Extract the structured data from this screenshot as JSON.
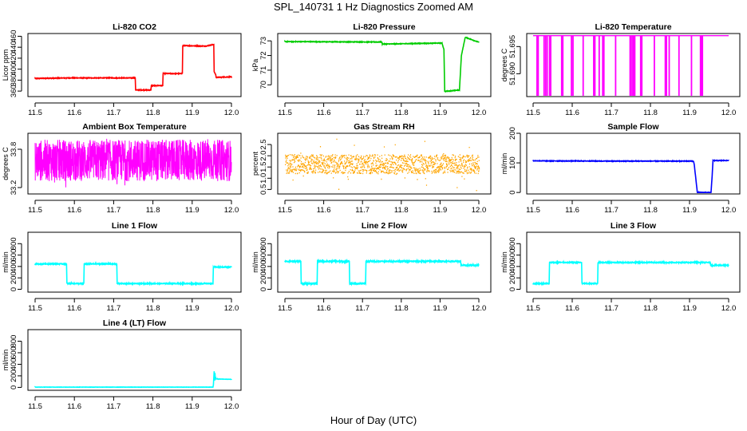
{
  "figure": {
    "title": "SPL_140731  1 Hz Diagnostics Zoomed AM",
    "xlabel": "Hour of Day (UTC)"
  },
  "chart_data": [
    {
      "type": "line",
      "title": "Li-820 CO2",
      "ylabel": "Licor ppm",
      "color": "#ff0000",
      "xlim": [
        11.5,
        12.0
      ],
      "ylim": [
        350,
        465
      ],
      "xticks": [
        "11.5",
        "11.6",
        "11.7",
        "11.8",
        "11.9",
        "12.0"
      ],
      "yticks": [
        360,
        380,
        400,
        420,
        440,
        460
      ],
      "x": [
        11.5,
        11.58,
        11.67,
        11.755,
        11.756,
        11.795,
        11.796,
        11.825,
        11.826,
        11.875,
        11.876,
        11.935,
        11.955,
        11.956,
        11.96,
        11.961,
        12.0
      ],
      "y": [
        383,
        384,
        384,
        384,
        362,
        362,
        370,
        370,
        392,
        392,
        443,
        442,
        445,
        395,
        390,
        385,
        386
      ],
      "noise": 0.6
    },
    {
      "type": "line",
      "title": "Li-820 Pressure",
      "ylabel": "kPa",
      "color": "#00cc00",
      "xlim": [
        11.5,
        12.0
      ],
      "ylim": [
        69.2,
        73.5
      ],
      "xticks": [
        "11.5",
        "11.6",
        "11.7",
        "11.8",
        "11.9",
        "12.0"
      ],
      "yticks": [
        70,
        71,
        72,
        73
      ],
      "x": [
        11.5,
        11.75,
        11.751,
        11.905,
        11.91,
        11.912,
        11.95,
        11.955,
        11.965,
        12.0
      ],
      "y": [
        72.95,
        72.92,
        72.78,
        72.85,
        72.4,
        69.55,
        69.65,
        72.0,
        73.25,
        72.9
      ],
      "noise": 0.02
    },
    {
      "type": "line",
      "title": "Li-820 Temperature",
      "ylabel": "degrees C",
      "color": "#ff00ff",
      "xlim": [
        11.5,
        12.0
      ],
      "ylim": [
        51.6858,
        51.6974
      ],
      "xticks": [
        "11.5",
        "11.6",
        "11.7",
        "11.8",
        "11.9",
        "12.0"
      ],
      "yticks": [
        51.69,
        51.695
      ],
      "ytick_labels": [
        "51.690",
        "51.695"
      ],
      "baseline": 51.697,
      "low": 51.6858,
      "drops": [
        11.51,
        11.513,
        11.528,
        11.532,
        11.536,
        11.542,
        11.545,
        11.573,
        11.576,
        11.598,
        11.602,
        11.628,
        11.655,
        11.658,
        11.669,
        11.678,
        11.681,
        11.711,
        11.748,
        11.751,
        11.755,
        11.757,
        11.76,
        11.775,
        11.778,
        11.81,
        11.838,
        11.841,
        11.848,
        11.873,
        11.905,
        11.928,
        11.93,
        11.933
      ]
    },
    {
      "type": "line",
      "title": "Ambient Box Temperature",
      "ylabel": "degrees C",
      "color": "#ff00ff",
      "xlim": [
        11.5,
        12.0
      ],
      "ylim": [
        33.1,
        34.05
      ],
      "xticks": [
        "11.5",
        "11.6",
        "11.7",
        "11.8",
        "11.9",
        "12.0"
      ],
      "yticks": [
        33.2,
        33.8
      ],
      "ytick_labels": [
        "33.2",
        "33.8"
      ],
      "band": [
        33.3,
        33.95
      ],
      "outliers": [
        33.15,
        34.0
      ]
    },
    {
      "type": "scatter",
      "title": "Gas Stream RH",
      "ylabel": "percent",
      "color": "#ffa500",
      "xlim": [
        11.5,
        12.0
      ],
      "ylim": [
        0.3,
        3.0
      ],
      "xticks": [
        "11.5",
        "11.6",
        "11.7",
        "11.8",
        "11.9",
        "12.0"
      ],
      "yticks": [
        0.5,
        1.0,
        1.5,
        2.0,
        2.5
      ],
      "ytick_labels": [
        "0.5",
        "1.0",
        "1.5",
        "2.0",
        "2.5"
      ],
      "band": [
        1.2,
        2.05
      ],
      "outliers": [
        0.4,
        2.8
      ]
    },
    {
      "type": "line",
      "title": "Sample Flow",
      "ylabel": "ml/min",
      "color": "#0000ff",
      "xlim": [
        11.5,
        12.0
      ],
      "ylim": [
        -5,
        200
      ],
      "xticks": [
        "11.5",
        "11.6",
        "11.7",
        "11.8",
        "11.9",
        "12.0"
      ],
      "yticks": [
        0,
        100,
        200
      ],
      "x": [
        11.5,
        11.7,
        11.91,
        11.912,
        11.92,
        11.955,
        11.958,
        11.96,
        12.0
      ],
      "y": [
        107,
        106,
        106,
        95,
        0,
        0,
        60,
        108,
        108
      ],
      "noise": 1.0
    },
    {
      "type": "line",
      "title": "Line 1 Flow",
      "ylabel": "ml/min",
      "color": "#00ffff",
      "xlim": [
        11.5,
        12.0
      ],
      "ylim": [
        -50,
        1000
      ],
      "xticks": [
        "11.5",
        "11.6",
        "11.7",
        "11.8",
        "11.9",
        "12.0"
      ],
      "yticks": [
        0,
        200,
        400,
        600,
        800
      ],
      "x": [
        11.5,
        11.58,
        11.581,
        11.624,
        11.625,
        11.708,
        11.709,
        11.953,
        11.954,
        12.0
      ],
      "y": [
        445,
        445,
        100,
        100,
        445,
        445,
        100,
        100,
        390,
        390
      ],
      "noise": 8
    },
    {
      "type": "line",
      "title": "Line 2 Flow",
      "ylabel": "ml/min",
      "color": "#00ffff",
      "xlim": [
        11.5,
        12.0
      ],
      "ylim": [
        -50,
        1000
      ],
      "xticks": [
        "11.5",
        "11.6",
        "11.7",
        "11.8",
        "11.9",
        "12.0"
      ],
      "yticks": [
        0,
        200,
        400,
        600,
        800
      ],
      "x": [
        11.5,
        11.541,
        11.542,
        11.583,
        11.584,
        11.666,
        11.667,
        11.708,
        11.709,
        11.953,
        11.954,
        12.0
      ],
      "y": [
        490,
        490,
        100,
        100,
        490,
        490,
        100,
        100,
        490,
        490,
        420,
        420
      ],
      "noise": 10
    },
    {
      "type": "line",
      "title": "Line 3 Flow",
      "ylabel": "ml/min",
      "color": "#00ffff",
      "xlim": [
        11.5,
        12.0
      ],
      "ylim": [
        -50,
        1000
      ],
      "xticks": [
        "11.5",
        "11.6",
        "11.7",
        "11.8",
        "11.9",
        "12.0"
      ],
      "yticks": [
        0,
        200,
        400,
        600,
        800
      ],
      "x": [
        11.5,
        11.541,
        11.542,
        11.624,
        11.625,
        11.665,
        11.666,
        11.953,
        11.954,
        12.0
      ],
      "y": [
        100,
        100,
        470,
        470,
        100,
        100,
        470,
        470,
        420,
        420
      ],
      "noise": 8
    },
    {
      "type": "line",
      "title": "Line 4 (LT) Flow",
      "ylabel": "ml/min",
      "color": "#00ffff",
      "xlim": [
        11.5,
        12.0
      ],
      "ylim": [
        -50,
        1000
      ],
      "xticks": [
        "11.5",
        "11.6",
        "11.7",
        "11.8",
        "11.9",
        "12.0"
      ],
      "yticks": [
        0,
        200,
        400,
        600,
        800
      ],
      "x": [
        11.5,
        11.953,
        11.954,
        11.956,
        11.957,
        11.958,
        11.959,
        11.96,
        11.965,
        12.0
      ],
      "y": [
        5,
        5,
        40,
        280,
        120,
        250,
        140,
        150,
        145,
        140
      ],
      "noise": 2
    }
  ]
}
